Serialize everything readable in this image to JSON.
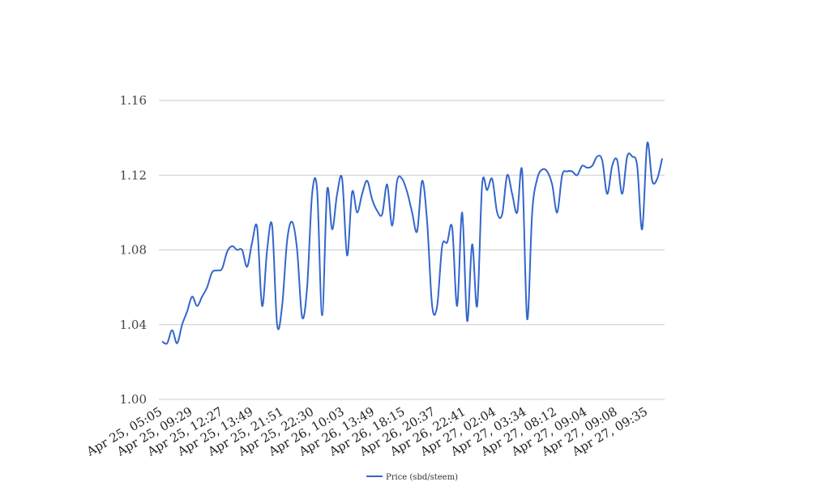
{
  "chart_data": {
    "type": "line",
    "title": "",
    "xlabel": "",
    "ylabel": "",
    "ylim": [
      1.0,
      1.16
    ],
    "y_ticks": [
      "1.00",
      "1.04",
      "1.08",
      "1.12",
      "1.16"
    ],
    "grid": true,
    "legend_position": "bottom",
    "x_tick_labels": [
      "Apr 25, 05:05",
      "Apr 25, 09:29",
      "Apr 25, 12:27",
      "Apr 25, 13:49",
      "Apr 25, 21:51",
      "Apr 25, 22:30",
      "Apr 26, 10:03",
      "Apr 26, 13:49",
      "Apr 26, 18:15",
      "Apr 26, 20:37",
      "Apr 26, 22:41",
      "Apr 27, 02:04",
      "Apr 27, 03:34",
      "Apr 27, 08:12",
      "Apr 27, 09:04",
      "Apr 27, 09:08",
      "Apr 27, 09:35"
    ],
    "series": [
      {
        "name": "Price (sbd/steem)",
        "color": "#3366cc",
        "values": [
          1.031,
          1.03,
          1.037,
          1.03,
          1.04,
          1.047,
          1.055,
          1.05,
          1.055,
          1.06,
          1.068,
          1.069,
          1.07,
          1.079,
          1.082,
          1.08,
          1.08,
          1.071,
          1.084,
          1.092,
          1.05,
          1.08,
          1.093,
          1.04,
          1.05,
          1.085,
          1.095,
          1.08,
          1.044,
          1.06,
          1.11,
          1.112,
          1.045,
          1.112,
          1.091,
          1.11,
          1.118,
          1.077,
          1.111,
          1.1,
          1.11,
          1.117,
          1.107,
          1.101,
          1.099,
          1.115,
          1.093,
          1.117,
          1.118,
          1.111,
          1.1,
          1.09,
          1.117,
          1.095,
          1.05,
          1.05,
          1.082,
          1.084,
          1.092,
          1.05,
          1.1,
          1.042,
          1.083,
          1.05,
          1.115,
          1.112,
          1.118,
          1.1,
          1.099,
          1.12,
          1.11,
          1.1,
          1.122,
          1.043,
          1.1,
          1.118,
          1.123,
          1.122,
          1.115,
          1.1,
          1.12,
          1.122,
          1.122,
          1.12,
          1.125,
          1.124,
          1.125,
          1.13,
          1.128,
          1.11,
          1.125,
          1.128,
          1.11,
          1.13,
          1.13,
          1.125,
          1.091,
          1.137,
          1.117,
          1.118,
          1.129
        ]
      }
    ]
  }
}
